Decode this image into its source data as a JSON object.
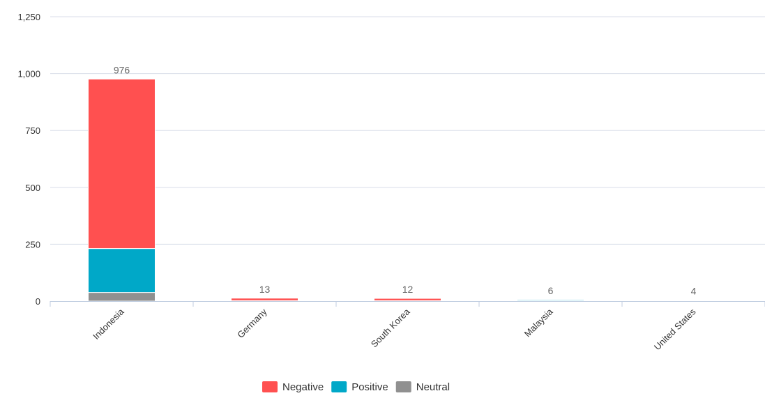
{
  "chart_data": {
    "type": "bar",
    "stacked": true,
    "categories": [
      "Indonesia",
      "Germany",
      "South Korea",
      "Malaysia",
      "United States"
    ],
    "series": [
      {
        "name": "Negative",
        "color": "#ff5050",
        "values": [
          745,
          11,
          10,
          0,
          0
        ]
      },
      {
        "name": "Positive",
        "color": "#00a8c8",
        "values": [
          193,
          1,
          1,
          4,
          2
        ]
      },
      {
        "name": "Neutral",
        "color": "#909090",
        "values": [
          38,
          1,
          1,
          2,
          2
        ]
      }
    ],
    "totals": [
      "976",
      "13",
      "12",
      "6",
      "4"
    ],
    "ylim": [
      0,
      1250
    ],
    "yticks": [
      "0",
      "250",
      "500",
      "750",
      "1,000",
      "1,250"
    ],
    "grid": true,
    "legend_position": "bottom-center"
  }
}
